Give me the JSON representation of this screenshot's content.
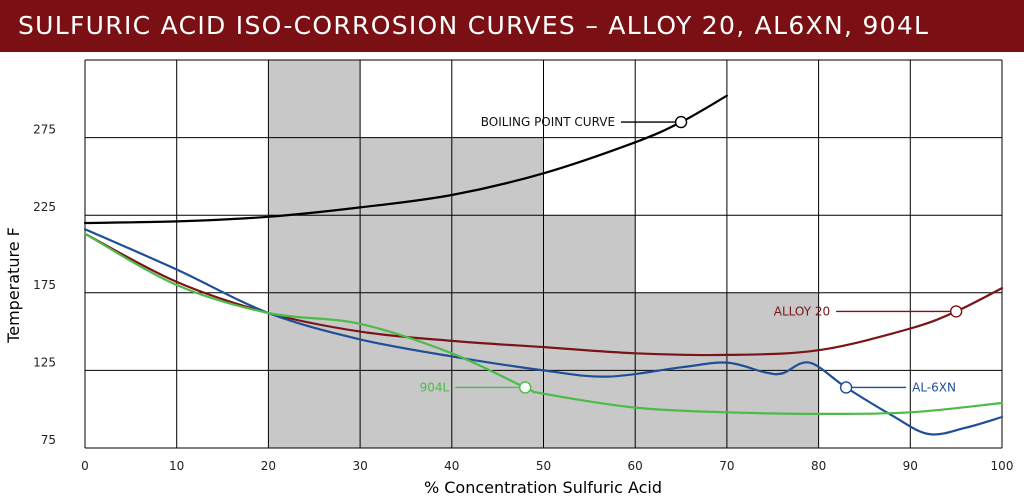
{
  "title": "SULFURIC ACID ISO-CORROSION CURVES – ALLOY 20, AL6XN, 904L",
  "colors": {
    "title_bg": "#7a1013",
    "grid": "#000000",
    "shade": "#c8c8c8",
    "boiling": "#000000",
    "alloy20": "#7a1418",
    "al6xn": "#1f4f96",
    "s904l": "#4cbb48"
  },
  "chart_data": {
    "type": "line",
    "title": "SULFURIC ACID ISO-CORROSION CURVES – ALLOY 20, AL6XN, 904L",
    "xlabel": "% Concentration Sulfuric Acid",
    "ylabel": "Temperature F",
    "xlim": [
      0,
      100
    ],
    "ylim": [
      75,
      325
    ],
    "x_ticks": [
      0,
      10,
      20,
      30,
      40,
      50,
      60,
      70,
      80,
      90,
      100
    ],
    "x_tick_labels": [
      "0",
      "10",
      "20",
      "30",
      "40",
      "50",
      "60",
      "70",
      "80",
      "90",
      "100"
    ],
    "y_ticks": [
      75,
      125,
      175,
      225,
      275
    ],
    "y_tick_labels": [
      "75",
      "125",
      "175",
      "225",
      "275"
    ],
    "grid": true,
    "shaded_regions": [
      {
        "x": [
          20,
          30
        ],
        "y": [
          75,
          325
        ]
      },
      {
        "x": [
          30,
          50
        ],
        "y": [
          75,
          275
        ]
      },
      {
        "x": [
          50,
          60
        ],
        "y": [
          75,
          225
        ]
      },
      {
        "x": [
          60,
          80
        ],
        "y": [
          75,
          175
        ]
      }
    ],
    "series": [
      {
        "name": "BOILING POINT CURVE",
        "color": "#000000",
        "label_at": [
          65,
          285
        ],
        "points": [
          [
            0,
            220
          ],
          [
            10,
            221
          ],
          [
            20,
            224
          ],
          [
            30,
            230
          ],
          [
            40,
            238
          ],
          [
            50,
            252
          ],
          [
            60,
            272
          ],
          [
            65,
            285
          ],
          [
            70,
            302
          ]
        ]
      },
      {
        "name": "ALLOY 20",
        "color": "#7a1418",
        "label_at": [
          95,
          163
        ],
        "points": [
          [
            0,
            213
          ],
          [
            10,
            182
          ],
          [
            20,
            162
          ],
          [
            30,
            150
          ],
          [
            40,
            144
          ],
          [
            50,
            140
          ],
          [
            60,
            136
          ],
          [
            70,
            135
          ],
          [
            80,
            138
          ],
          [
            90,
            152
          ],
          [
            95,
            163
          ],
          [
            100,
            178
          ]
        ]
      },
      {
        "name": "AL-6XN",
        "color": "#1f4f96",
        "label_at": [
          83,
          114
        ],
        "points": [
          [
            0,
            216
          ],
          [
            10,
            190
          ],
          [
            20,
            162
          ],
          [
            30,
            145
          ],
          [
            40,
            134
          ],
          [
            50,
            125
          ],
          [
            57,
            121
          ],
          [
            65,
            127
          ],
          [
            70,
            130
          ],
          [
            74,
            124
          ],
          [
            76,
            123
          ],
          [
            79,
            130
          ],
          [
            83,
            114
          ],
          [
            88,
            96
          ],
          [
            92,
            84
          ],
          [
            96,
            88
          ],
          [
            100,
            95
          ]
        ]
      },
      {
        "name": "904L",
        "color": "#4cbb48",
        "label_at": [
          48,
          114
        ],
        "points": [
          [
            0,
            213
          ],
          [
            10,
            180
          ],
          [
            20,
            162
          ],
          [
            30,
            155
          ],
          [
            40,
            136
          ],
          [
            48,
            114
          ],
          [
            50,
            110
          ],
          [
            60,
            101
          ],
          [
            70,
            98
          ],
          [
            80,
            97
          ],
          [
            90,
            98
          ],
          [
            100,
            104
          ]
        ]
      }
    ]
  }
}
